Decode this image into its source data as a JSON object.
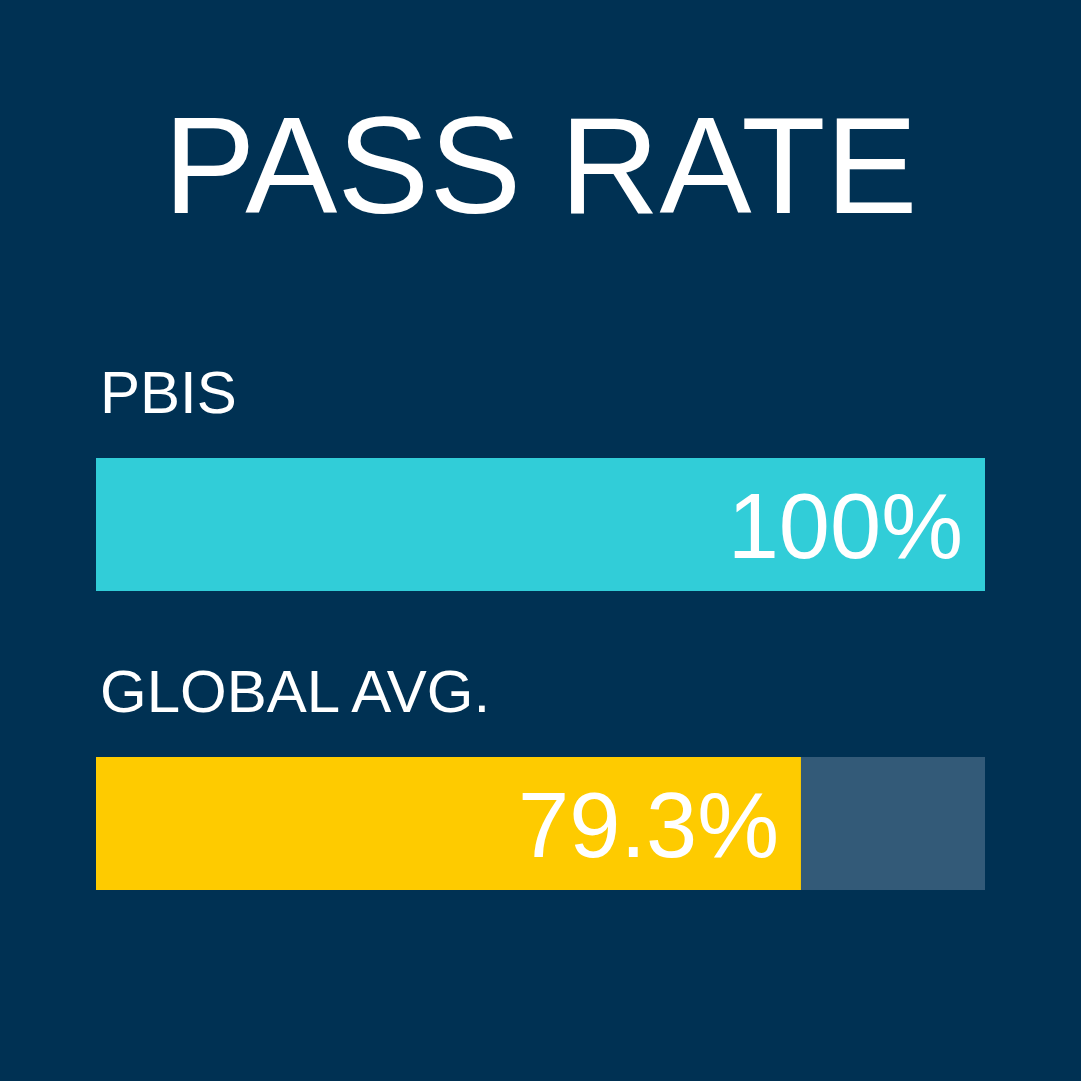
{
  "chart_data": {
    "type": "bar",
    "orientation": "horizontal",
    "stacked": true,
    "title": "PASS RATE",
    "categories": [
      "PBIS",
      "GLOBAL AVG."
    ],
    "series": [
      {
        "colors": [
          "#31cdd8",
          "#fecb00"
        ],
        "values": [
          100,
          79.3
        ],
        "value_labels": [
          "100%",
          "79.3%"
        ]
      },
      {
        "color": "#335a78",
        "values": [
          0,
          20.7
        ]
      }
    ],
    "xlim": [
      0,
      100
    ],
    "tick_labels": false
  }
}
